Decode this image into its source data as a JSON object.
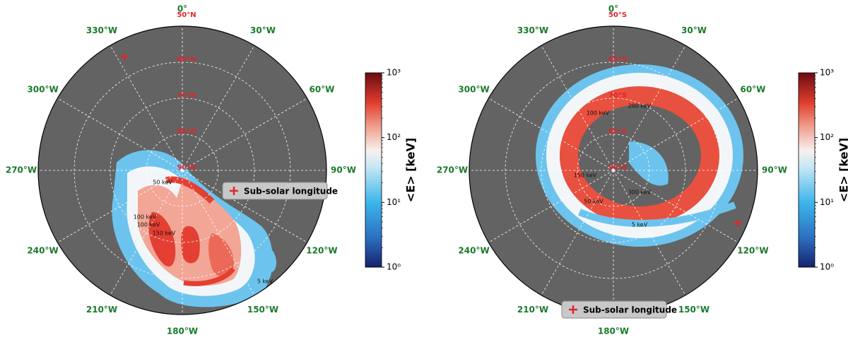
{
  "chart_data": [
    {
      "type": "polar_map",
      "rlim": [
        90,
        50
      ],
      "lat_ticks": [
        {
          "value": 50,
          "label": "50°N"
        },
        {
          "value": 60,
          "label": "60°N"
        },
        {
          "value": 70,
          "label": "70°N"
        },
        {
          "value": 80,
          "label": "80°N"
        },
        {
          "value": 90,
          "label": "90°N"
        }
      ],
      "lon_ticks": [
        {
          "value": 0,
          "label": "0°"
        },
        {
          "value": 30,
          "label": "30°W"
        },
        {
          "value": 60,
          "label": "60°W"
        },
        {
          "value": 90,
          "label": "90°W"
        },
        {
          "value": 120,
          "label": "120°W"
        },
        {
          "value": 150,
          "label": "150°W"
        },
        {
          "value": 180,
          "label": "180°W"
        },
        {
          "value": 210,
          "label": "210°W"
        },
        {
          "value": 240,
          "label": "240°W"
        },
        {
          "value": 270,
          "label": "270°W"
        },
        {
          "value": 300,
          "label": "300°W"
        },
        {
          "value": 330,
          "label": "330°W"
        }
      ],
      "subsolar": {
        "lon": 333,
        "lat": 54.6
      },
      "legend": "Sub-solar longitude",
      "contour_labels": [
        "50 keV",
        "100 keV",
        "150 keV",
        "200 keV",
        "5 keV"
      ],
      "colorbar": {
        "label": "<E> [keV]",
        "log": true,
        "lim": [
          1,
          1000
        ],
        "ticks": [
          {
            "value": 1,
            "label": "10⁰"
          },
          {
            "value": 10,
            "label": "10¹"
          },
          {
            "value": 100,
            "label": "10²"
          },
          {
            "value": 1000,
            "label": "10³"
          }
        ]
      }
    },
    {
      "type": "polar_map",
      "rlim": [
        -90,
        -50
      ],
      "lat_ticks": [
        {
          "value": -50,
          "label": "50°S"
        },
        {
          "value": -60,
          "label": "60°S"
        },
        {
          "value": -70,
          "label": "70°S"
        },
        {
          "value": -80,
          "label": "80°S"
        },
        {
          "value": -90,
          "label": "90°S"
        }
      ],
      "lon_ticks": [
        {
          "value": 0,
          "label": "0°"
        },
        {
          "value": 30,
          "label": "30°W"
        },
        {
          "value": 60,
          "label": "60°W"
        },
        {
          "value": 90,
          "label": "90°W"
        },
        {
          "value": 120,
          "label": "120°W"
        },
        {
          "value": 150,
          "label": "150°W"
        },
        {
          "value": 180,
          "label": "180°W"
        },
        {
          "value": 210,
          "label": "210°W"
        },
        {
          "value": 240,
          "label": "240°W"
        },
        {
          "value": 270,
          "label": "270°W"
        },
        {
          "value": 300,
          "label": "300°W"
        },
        {
          "value": 330,
          "label": "330°W"
        }
      ],
      "subsolar": {
        "lon": 113,
        "lat": -52.5
      },
      "legend": "Sub-solar longitude",
      "contour_labels": [
        "100 keV",
        "200 keV",
        "150 keV",
        "300 keV",
        "50 keV",
        "5 keV"
      ],
      "colorbar": {
        "label": "<E> [keV]",
        "log": true,
        "lim": [
          1,
          1000
        ],
        "ticks": [
          {
            "value": 1,
            "label": "10⁰"
          },
          {
            "value": 10,
            "label": "10¹"
          },
          {
            "value": 100,
            "label": "10²"
          },
          {
            "value": 1000,
            "label": "10³"
          }
        ]
      }
    }
  ]
}
